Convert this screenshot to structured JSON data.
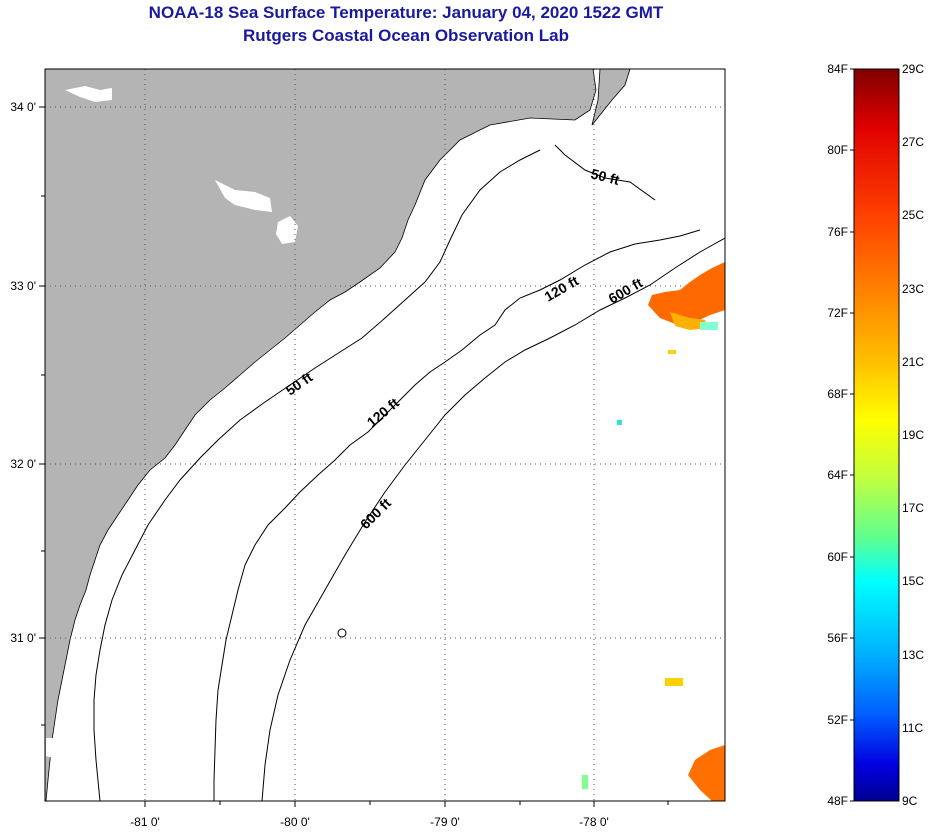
{
  "title": {
    "line1": "NOAA-18 Sea Surface Temperature:  January 04, 2020 1522 GMT",
    "line2": "Rutgers Coastal Ocean Observation Lab"
  },
  "map": {
    "lon_labels": [
      "-81 0'",
      "-80 0'",
      "-79 0'",
      "-78 0'"
    ],
    "lat_labels": [
      "34 0'",
      "33 0'",
      "32 0'",
      "31 0'"
    ],
    "contours": [
      {
        "id": "50-ne",
        "label": "50 ft"
      },
      {
        "id": "50-sw",
        "label": "50 ft"
      },
      {
        "id": "120-ne",
        "label": "120 ft"
      },
      {
        "id": "120-sw",
        "label": "120 ft"
      },
      {
        "id": "600-ne",
        "label": "600 ft"
      },
      {
        "id": "600-sw",
        "label": "600 ft"
      }
    ],
    "colors": {
      "land": "#b4b4b4",
      "water": "#ffffff",
      "grid": "#444444",
      "coast": "#000000"
    }
  },
  "colorbar": {
    "fahrenheit_labels": [
      "84F",
      "80F",
      "76F",
      "72F",
      "68F",
      "64F",
      "60F",
      "56F",
      "52F",
      "48F"
    ],
    "celsius_labels": [
      "29C",
      "27C",
      "25C",
      "23C",
      "21C",
      "19C",
      "17C",
      "15C",
      "13C",
      "11C",
      "9C"
    ],
    "gradient_top_to_bottom": [
      "#800000",
      "#e00000",
      "#ff4000",
      "#ff8000",
      "#ffc000",
      "#ffff00",
      "#c0ff40",
      "#60ff90",
      "#00ffff",
      "#00b0ff",
      "#0060ff",
      "#0000e0",
      "#000090"
    ]
  }
}
